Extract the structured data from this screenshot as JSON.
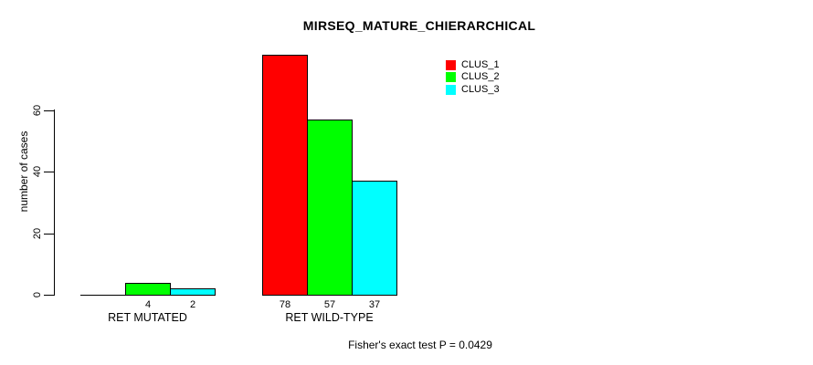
{
  "title": "MIRSEQ_MATURE_CHIERARCHICAL",
  "footer": "Fisher's exact test P = 0.0429",
  "legend": {
    "items": [
      {
        "label": "CLUS_1",
        "color": "#ff0000"
      },
      {
        "label": "CLUS_2",
        "color": "#00ff00"
      },
      {
        "label": "CLUS_3",
        "color": "#00ffff"
      }
    ]
  },
  "chart_data": {
    "type": "bar",
    "title": "MIRSEQ_MATURE_CHIERARCHICAL",
    "categories": [
      "RET MUTATED",
      "RET WILD-TYPE"
    ],
    "series": [
      {
        "name": "CLUS_1",
        "color": "#ff0000",
        "values": [
          0,
          78
        ]
      },
      {
        "name": "CLUS_2",
        "color": "#00ff00",
        "values": [
          4,
          57
        ]
      },
      {
        "name": "CLUS_3",
        "color": "#00ffff",
        "values": [
          2,
          37
        ]
      }
    ],
    "bar_labels": [
      [
        "",
        "4",
        "2"
      ],
      [
        "78",
        "57",
        "37"
      ]
    ],
    "xlabel": "",
    "ylabel": "number of cases",
    "yticks": [
      0,
      20,
      40,
      60
    ],
    "ylim": [
      0,
      60
    ],
    "grid": false,
    "legend_position": "top-right",
    "annotation": "Fisher's exact test P = 0.0429"
  }
}
